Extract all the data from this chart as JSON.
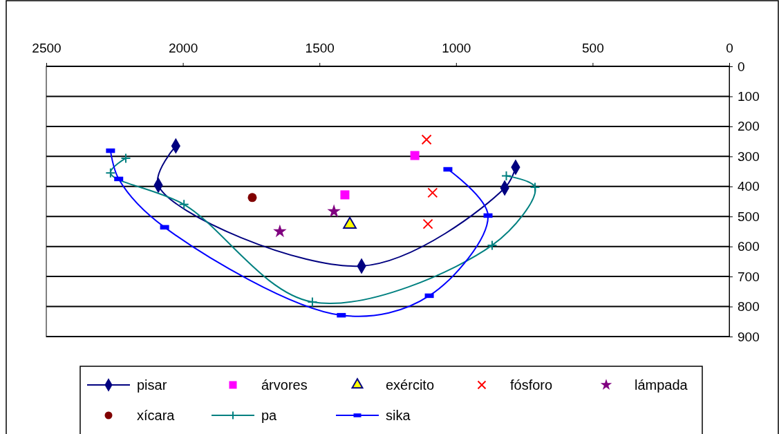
{
  "chart_data": {
    "type": "scatter",
    "xlim": [
      2500,
      0
    ],
    "xticks": [
      2500,
      2000,
      1500,
      1000,
      500,
      0
    ],
    "ylim": [
      900,
      0
    ],
    "yticks": [
      0,
      100,
      200,
      300,
      400,
      500,
      600,
      700,
      800,
      900
    ],
    "grid": "y",
    "legend": "bottom",
    "series": [
      {
        "name": "pisar",
        "type": "line",
        "marker": "diamond",
        "color": "#000080",
        "x": [
          2026,
          2090,
          1346,
          822,
          782
        ],
        "values": [
          265,
          396,
          665,
          405,
          336
        ]
      },
      {
        "name": "árvores",
        "marker": "square",
        "color": "#ff00ff",
        "x": [
          1151,
          1407
        ],
        "values": [
          297,
          428
        ]
      },
      {
        "name": "exército",
        "marker": "triangle",
        "color": "#ffff00",
        "x": [
          1389
        ],
        "values": [
          527
        ]
      },
      {
        "name": "fósforo",
        "marker": "x",
        "color": "#ff0000",
        "x": [
          1108,
          1086,
          1103
        ],
        "values": [
          244,
          421,
          525
        ]
      },
      {
        "name": "lámpada",
        "marker": "star",
        "color": "#800080",
        "x": [
          1645,
          1447
        ],
        "values": [
          550,
          483
        ]
      },
      {
        "name": "xícara",
        "marker": "circle",
        "color": "#800000",
        "x": [
          1746
        ],
        "values": [
          437
        ]
      },
      {
        "name": "pa",
        "type": "line",
        "marker": "cross",
        "color": "#008080",
        "x": [
          2209,
          2265,
          1996,
          1526,
          868,
          711,
          816
        ],
        "values": [
          306,
          355,
          460,
          785,
          596,
          403,
          365
        ]
      },
      {
        "name": "sika",
        "type": "line",
        "marker": "square",
        "color": "#0000ff",
        "x": [
          2265,
          2235,
          2067,
          1420,
          1098,
          883,
          1030
        ],
        "values": [
          281,
          375,
          536,
          829,
          764,
          497,
          343
        ]
      }
    ]
  }
}
